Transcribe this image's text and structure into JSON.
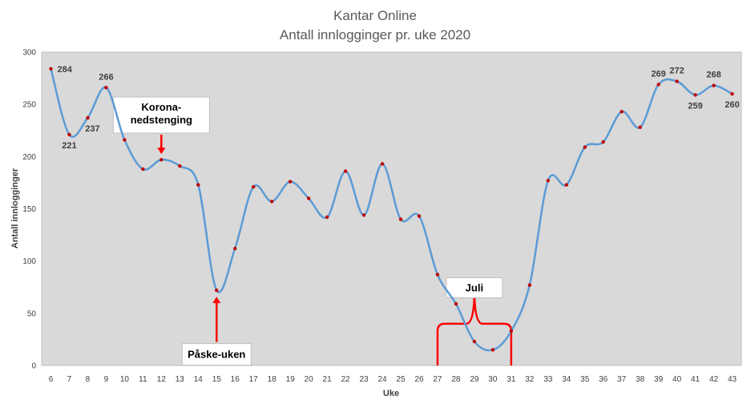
{
  "chart_data": {
    "type": "line",
    "title": "Kantar Online",
    "subtitle": "Antall innlogginger pr. uke 2020",
    "xlabel": "Uke",
    "ylabel": "Antall innlogginger",
    "ylim": [
      0,
      300
    ],
    "yticks": [
      "0",
      "50",
      "100",
      "150",
      "200",
      "250",
      "300"
    ],
    "grid": false,
    "smooth": true,
    "colors": {
      "line": "#5b9bd5",
      "marker": "#c00000",
      "plot_bg": "#d9d9d9",
      "annotation": "#ff0000"
    },
    "x": [
      6,
      7,
      8,
      9,
      10,
      11,
      12,
      13,
      14,
      15,
      16,
      17,
      18,
      19,
      20,
      21,
      22,
      23,
      24,
      25,
      26,
      27,
      28,
      29,
      30,
      31,
      32,
      33,
      34,
      35,
      36,
      37,
      38,
      39,
      40,
      41,
      42,
      43
    ],
    "series": [
      {
        "values": [
          284,
          221,
          237,
          266,
          216,
          188,
          197,
          191,
          173,
          72,
          112,
          171,
          157,
          176,
          160,
          142,
          186,
          144,
          193,
          140,
          143,
          87,
          59,
          23,
          15,
          33,
          77,
          177,
          173,
          209,
          214,
          243,
          228,
          269,
          272,
          259,
          268,
          260
        ],
        "data_labels": [
          {
            "x": 6,
            "text": "284",
            "pos": "right"
          },
          {
            "x": 7,
            "text": "221",
            "pos": "below"
          },
          {
            "x": 8,
            "text": "237",
            "pos": "belowright"
          },
          {
            "x": 9,
            "text": "266",
            "pos": "above"
          },
          {
            "x": 39,
            "text": "269",
            "pos": "above"
          },
          {
            "x": 40,
            "text": "272",
            "pos": "above"
          },
          {
            "x": 41,
            "text": "259",
            "pos": "below"
          },
          {
            "x": 42,
            "text": "268",
            "pos": "above"
          },
          {
            "x": 43,
            "text": "260",
            "pos": "below"
          }
        ]
      }
    ],
    "annotations": [
      {
        "text_lines": [
          "Korona-",
          "nedstenging"
        ],
        "week": 12,
        "y": 197,
        "box_y": 257,
        "arrow": "down"
      },
      {
        "text_lines": [
          "Påske-uken"
        ],
        "week": 15,
        "y": 72,
        "box_y": 21,
        "arrow": "up"
      },
      {
        "text_lines": [
          "Juli"
        ],
        "week": 29,
        "y": 0,
        "box_y": 84,
        "arrow": "brace",
        "range": [
          27,
          31
        ]
      }
    ]
  }
}
